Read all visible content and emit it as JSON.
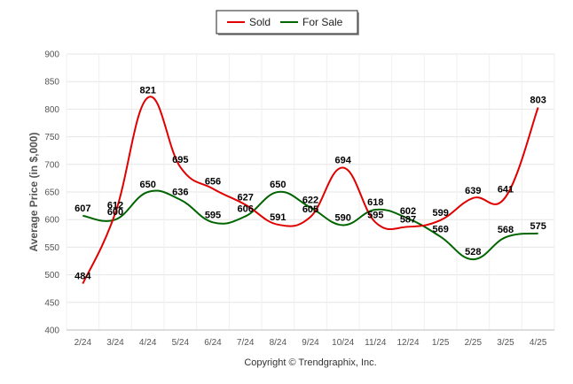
{
  "chart_data": {
    "type": "line",
    "categories": [
      "2/24",
      "3/24",
      "4/24",
      "5/24",
      "6/24",
      "7/24",
      "8/24",
      "9/24",
      "10/24",
      "11/24",
      "12/24",
      "1/25",
      "2/25",
      "3/25",
      "4/25"
    ],
    "series": [
      {
        "name": "Sold",
        "color": "#e00000",
        "values": [
          484,
          612,
          821,
          695,
          656,
          627,
          591,
          605,
          694,
          595,
          587,
          599,
          639,
          641,
          803
        ]
      },
      {
        "name": "For Sale",
        "color": "#006400",
        "values": [
          607,
          600,
          650,
          636,
          595,
          606,
          650,
          622,
          590,
          618,
          602,
          569,
          528,
          568,
          575
        ]
      }
    ],
    "ylabel": "Average Price (in $,000)",
    "ylim": [
      400,
      900
    ],
    "yticks": [
      400,
      450,
      500,
      550,
      600,
      650,
      700,
      750,
      800,
      850,
      900
    ],
    "grid": true,
    "legend": "top-center",
    "footer": "Copyright © Trendgraphix, Inc."
  }
}
